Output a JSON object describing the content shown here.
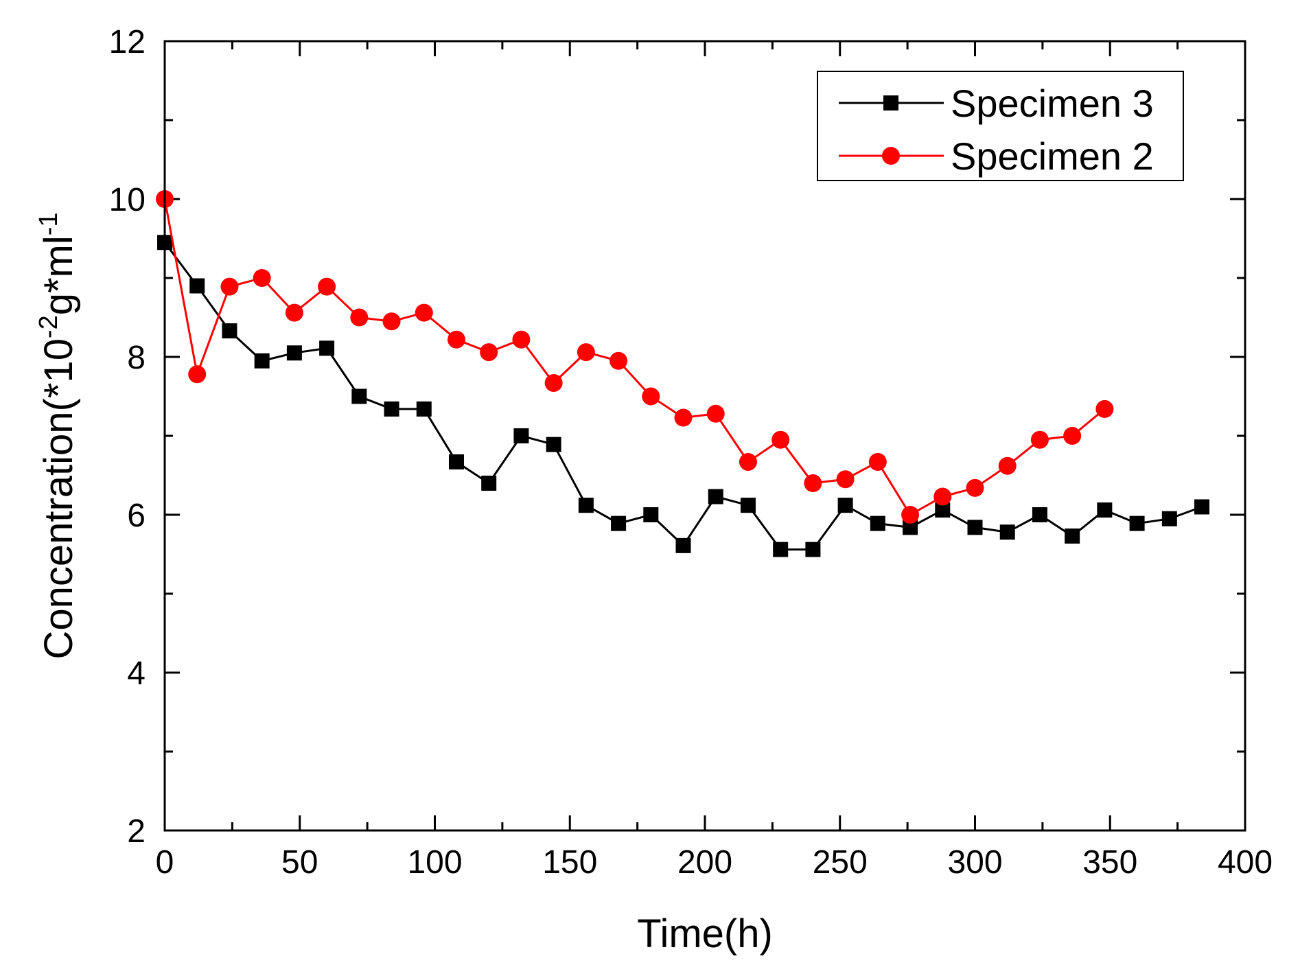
{
  "chart_data": {
    "type": "line",
    "xlabel": "Time(h)",
    "ylabel": {
      "prefix": "Concentration(*10",
      "exp1": "-2",
      "mid": "g*ml",
      "exp2": "-1",
      "suffix": ""
    },
    "xlim": [
      0,
      400
    ],
    "ylim": [
      2,
      12
    ],
    "xticks": [
      0,
      50,
      100,
      150,
      200,
      250,
      300,
      350,
      400
    ],
    "yticks": [
      2,
      4,
      6,
      8,
      10,
      12
    ],
    "xtick_labels": [
      "0",
      "50",
      "100",
      "150",
      "200",
      "250",
      "300",
      "350",
      "400"
    ],
    "ytick_labels": [
      "2",
      "4",
      "6",
      "8",
      "10",
      "12"
    ],
    "grid": false,
    "legend_position": "top-right",
    "series": [
      {
        "name": "Specimen 3",
        "color": "#000000",
        "marker": "square",
        "x": [
          0,
          12,
          24,
          36,
          48,
          60,
          72,
          84,
          96,
          108,
          120,
          132,
          144,
          156,
          168,
          180,
          192,
          204,
          216,
          228,
          240,
          252,
          264,
          276,
          288,
          300,
          312,
          324,
          336,
          348,
          360,
          372,
          384
        ],
        "y": [
          9.45,
          8.9,
          8.33,
          7.95,
          8.05,
          8.11,
          7.5,
          7.34,
          7.34,
          6.67,
          6.4,
          7.0,
          6.89,
          6.12,
          5.89,
          6.0,
          5.61,
          6.23,
          6.12,
          5.56,
          5.56,
          6.12,
          5.89,
          5.84,
          6.06,
          5.84,
          5.78,
          6.0,
          5.73,
          6.06,
          5.89,
          5.95,
          6.1
        ]
      },
      {
        "name": "Specimen 2",
        "color": "#ff0000",
        "marker": "circle",
        "x": [
          0,
          12,
          24,
          36,
          48,
          60,
          72,
          84,
          96,
          108,
          120,
          132,
          144,
          156,
          168,
          180,
          192,
          204,
          216,
          228,
          240,
          252,
          264,
          276,
          288,
          300,
          312,
          324,
          336,
          348
        ],
        "y": [
          10.0,
          7.78,
          8.89,
          9.0,
          8.56,
          8.89,
          8.5,
          8.45,
          8.56,
          8.22,
          8.06,
          8.22,
          7.67,
          8.06,
          7.95,
          7.5,
          7.23,
          7.28,
          6.67,
          6.95,
          6.4,
          6.45,
          6.67,
          6.0,
          6.23,
          6.34,
          6.62,
          6.95,
          7.0,
          7.34
        ]
      }
    ]
  }
}
